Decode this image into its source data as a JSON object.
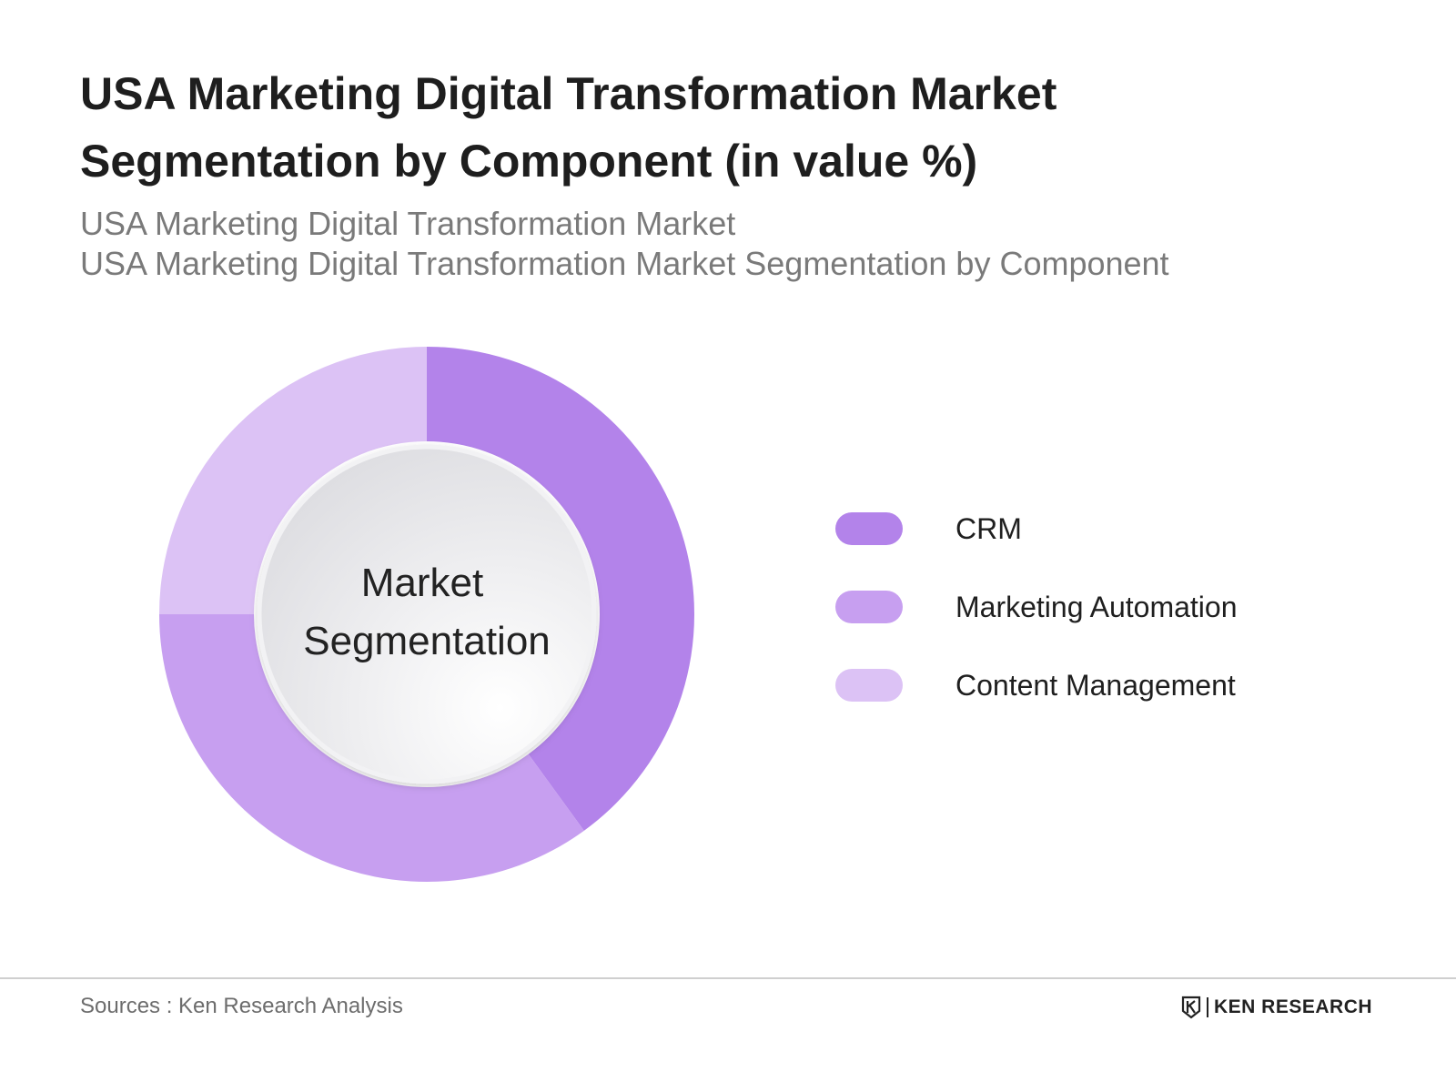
{
  "header": {
    "title": "USA Marketing Digital Transformation Market Segmentation by Component (in value %)",
    "subtitle_line1": "USA Marketing Digital Transformation Market",
    "subtitle_line2": "USA Marketing Digital Transformation Market Segmentation by Component"
  },
  "chart_data": {
    "type": "pie",
    "title": "USA Marketing Digital Transformation Market Segmentation by Component (in value %)",
    "center_label_line1": "Market",
    "center_label_line2": "Segmentation",
    "categories": [
      "CRM",
      "Marketing Automation",
      "Content Management"
    ],
    "values": [
      40,
      35,
      25
    ],
    "unit": "%",
    "colors": [
      "#b383ea",
      "#c79ff0",
      "#dcc2f5"
    ],
    "legend_position": "right"
  },
  "legend": {
    "items": [
      {
        "label": "CRM",
        "color": "#b383ea"
      },
      {
        "label": "Marketing Automation",
        "color": "#c79ff0"
      },
      {
        "label": "Content Management",
        "color": "#dcc2f5"
      }
    ]
  },
  "footer": {
    "source": "Sources : Ken Research Analysis",
    "brand": "KEN RESEARCH",
    "brand_icon": "ken-research-logo-icon"
  }
}
